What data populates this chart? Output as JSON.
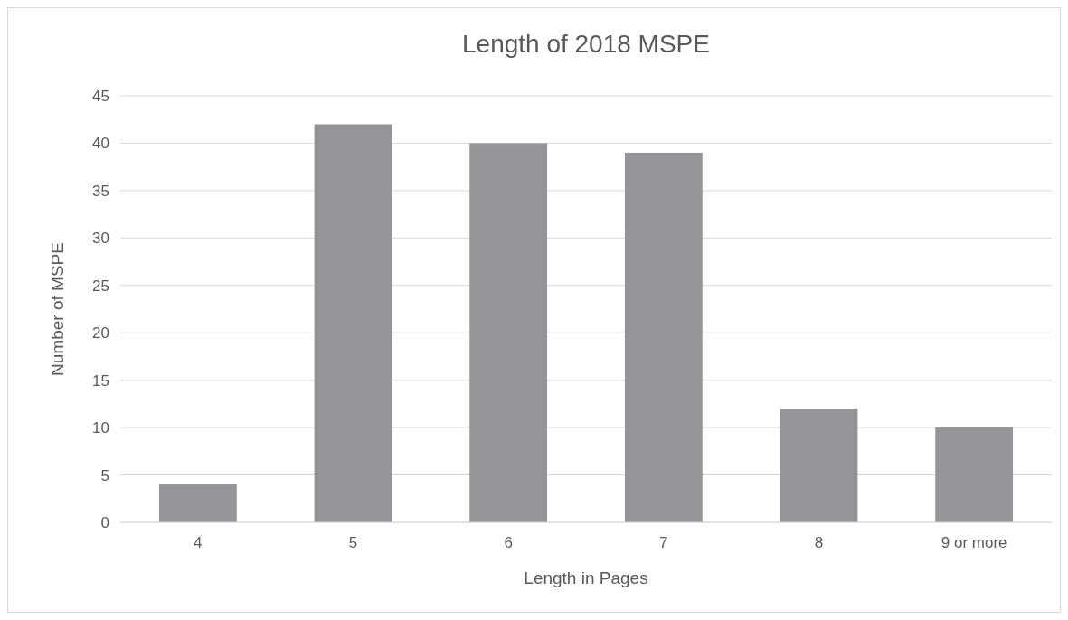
{
  "chart_data": {
    "type": "bar",
    "title": "Length of 2018 MSPE",
    "xlabel": "Length in Pages",
    "ylabel": "Number of MSPE",
    "categories": [
      "4",
      "5",
      "6",
      "7",
      "8",
      "9 or more"
    ],
    "values": [
      4,
      42,
      40,
      39,
      12,
      10
    ],
    "color": "#939598",
    "ylim": [
      0,
      45
    ],
    "yticks": [
      0,
      5,
      10,
      15,
      20,
      25,
      30,
      35,
      40,
      45
    ],
    "grid": "y"
  }
}
